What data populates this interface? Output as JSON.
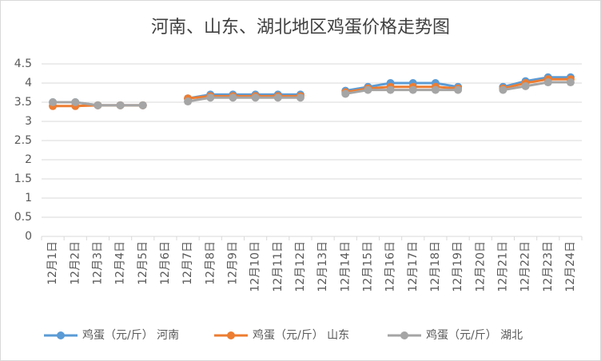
{
  "chart_data": {
    "type": "line",
    "title": "河南、山东、湖北地区鸡蛋价格走势图",
    "categories": [
      "12月1日",
      "12月2日",
      "12月3日",
      "12月4日",
      "12月5日",
      "12月6日",
      "12月7日",
      "12月8日",
      "12月9日",
      "12月10日",
      "12月11日",
      "12月12日",
      "12月13日",
      "12月14日",
      "12月15日",
      "12月16日",
      "12月17日",
      "12月18日",
      "12月19日",
      "12月20日",
      "12月21日",
      "12月22日",
      "12月23日",
      "12月24日"
    ],
    "series": [
      {
        "name": "鸡蛋（元/斤） 河南",
        "color": "#5b9bd5",
        "values": [
          3.5,
          3.5,
          3.42,
          3.42,
          3.42,
          null,
          3.6,
          3.7,
          3.7,
          3.7,
          3.7,
          3.7,
          null,
          3.8,
          3.9,
          4.0,
          4.0,
          4.0,
          3.9,
          null,
          3.9,
          4.05,
          4.15,
          4.15
        ]
      },
      {
        "name": "鸡蛋（元/斤） 山东",
        "color": "#ed7d31",
        "values": [
          3.4,
          3.4,
          3.42,
          3.42,
          3.42,
          null,
          3.6,
          3.66,
          3.66,
          3.66,
          3.66,
          3.66,
          null,
          3.76,
          3.86,
          3.9,
          3.9,
          3.9,
          3.86,
          null,
          3.86,
          4.0,
          4.1,
          4.1
        ]
      },
      {
        "name": "鸡蛋（元/斤） 湖北",
        "color": "#a5a5a5",
        "values": [
          3.5,
          3.5,
          3.42,
          3.42,
          3.42,
          null,
          3.52,
          3.62,
          3.62,
          3.62,
          3.62,
          3.62,
          null,
          3.72,
          3.82,
          3.82,
          3.82,
          3.82,
          3.82,
          null,
          3.82,
          3.92,
          4.02,
          4.02
        ]
      }
    ],
    "ylim": [
      0,
      4.5
    ],
    "yticks": [
      0,
      0.5,
      1,
      1.5,
      2,
      2.5,
      3,
      3.5,
      4,
      4.5
    ],
    "grid": true,
    "legend": "bottom"
  }
}
